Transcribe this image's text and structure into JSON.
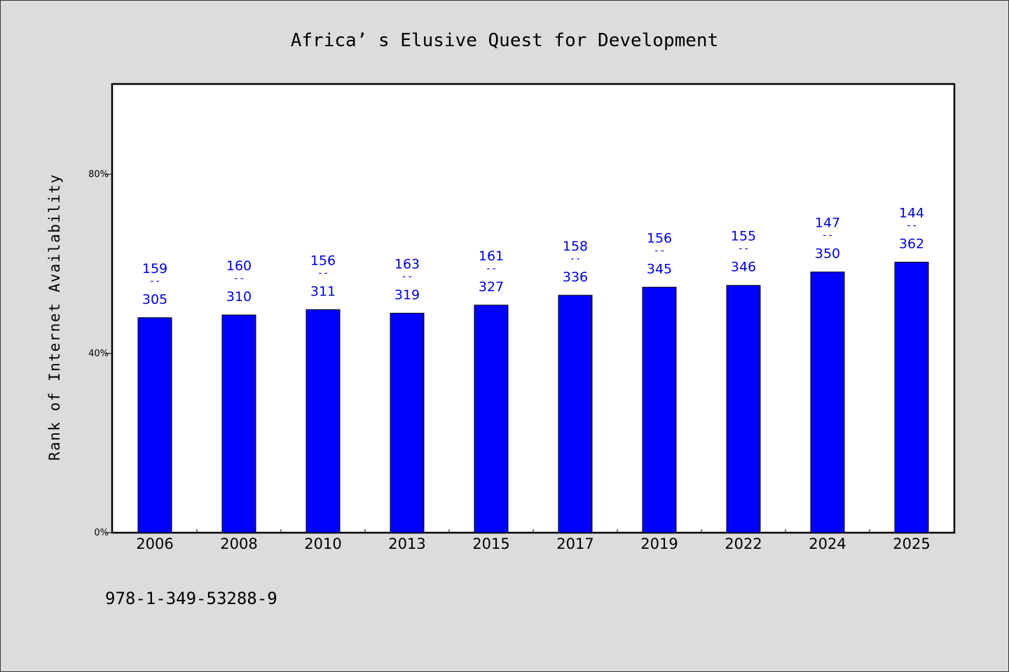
{
  "chart_data": {
    "type": "bar",
    "title": "Africa’ s Elusive Quest for Development",
    "ylabel": "Rank of Internet Availability",
    "xlabel": "",
    "categories": [
      "2006",
      "2008",
      "2010",
      "2013",
      "2015",
      "2017",
      "2019",
      "2022",
      "2024",
      "2025"
    ],
    "values": [
      48,
      48.6,
      49.8,
      49,
      50.8,
      53,
      54.8,
      55.2,
      58.2,
      60.4
    ],
    "data_labels": [
      {
        "top": "159",
        "sep": "--",
        "bottom": "305"
      },
      {
        "top": "160",
        "sep": "--",
        "bottom": "310"
      },
      {
        "top": "156",
        "sep": "--",
        "bottom": "311"
      },
      {
        "top": "163",
        "sep": "--",
        "bottom": "319"
      },
      {
        "top": "161",
        "sep": "--",
        "bottom": "327"
      },
      {
        "top": "158",
        "sep": "--",
        "bottom": "336"
      },
      {
        "top": "156",
        "sep": "--",
        "bottom": "345"
      },
      {
        "top": "155",
        "sep": "--",
        "bottom": "346"
      },
      {
        "top": "147",
        "sep": "--",
        "bottom": "350"
      },
      {
        "top": "144",
        "sep": "--",
        "bottom": "362"
      }
    ],
    "ylim": [
      0,
      100
    ],
    "yticks": [
      0,
      40,
      80
    ],
    "ytick_labels": [
      "0%",
      "40%",
      "80%"
    ],
    "grid": false,
    "legend": "none",
    "bar_color": "#0000ff",
    "label_color": "#0000e0"
  },
  "footer": {
    "isbn": "978-1-349-53288-9"
  }
}
